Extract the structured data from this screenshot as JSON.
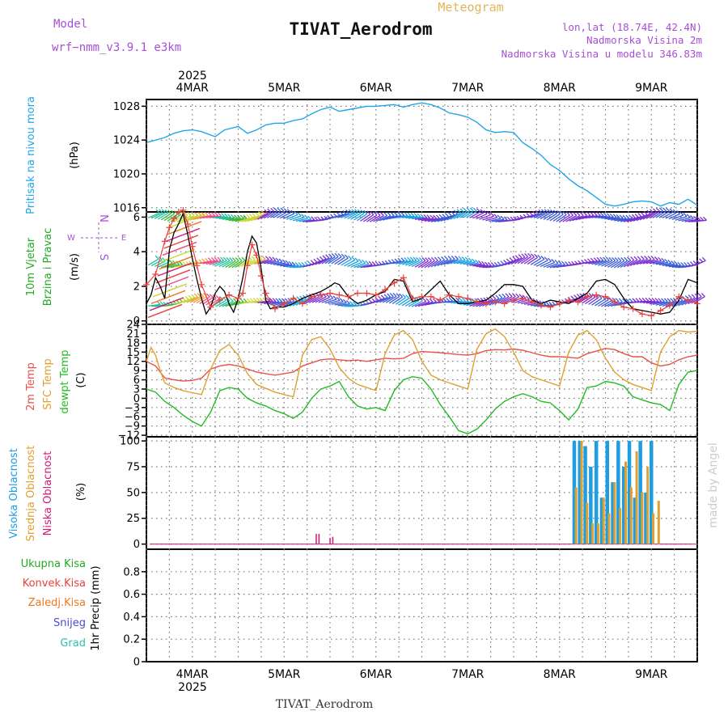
{
  "header": {
    "model_label": "Model",
    "model_name": "wrf−nmm_v3.9.1  e3km",
    "meteogram_label": "Meteogram",
    "title": "TIVAT_Aerodrom",
    "coords": "lon,lat (18.74E, 42.4N)",
    "altitude": "Nadmorska Visina 2m",
    "model_altitude": "Nadmorska Visina u modelu 346.83m",
    "watermark": "made by Angel"
  },
  "footer": {
    "station": "TIVAT_Aerodrom"
  },
  "colors": {
    "pressure": "#23a6e8",
    "wind_speed": "#000000",
    "gust": "#e8413c",
    "t2m": "#e8524a",
    "sfc": "#e0a030",
    "dewpt": "#22bb22",
    "cloud_high": "#1e9de0",
    "cloud_mid": "#e0a030",
    "cloud_low": "#d01a78",
    "precip_total": "#22aa22",
    "precip_conv": "#e8413c",
    "precip_frozen": "#f07820",
    "precip_snow": "#4a4ad6",
    "precip_graupel": "#2bc0b0"
  },
  "chart_data": [
    {
      "type": "line",
      "panel": "pressure",
      "ylabel": [
        "Pritisak na nivou mora",
        "(hPa)"
      ],
      "ylim": [
        1015.5,
        1028.8
      ],
      "yticks": [
        "1028",
        "1024",
        "1020",
        "1016"
      ],
      "x_days": [
        "4MAR",
        "5MAR",
        "6MAR",
        "7MAR",
        "8MAR",
        "9MAR"
      ],
      "year": "2025",
      "x_range_days": [
        -0.5,
        5.5
      ],
      "series": [
        {
          "name": "Sea level pressure",
          "x": [
            -0.5,
            -0.3,
            -0.2,
            -0.1,
            0.0,
            0.1,
            0.15,
            0.25,
            0.35,
            0.5,
            0.6,
            0.7,
            0.8,
            0.9,
            1.0,
            1.1,
            1.2,
            1.3,
            1.4,
            1.5,
            1.6,
            1.7,
            1.8,
            1.9,
            2.0,
            2.1,
            2.2,
            2.3,
            2.4,
            2.5,
            2.6,
            2.7,
            2.8,
            2.9,
            3.0,
            3.1,
            3.2,
            3.3,
            3.4,
            3.5,
            3.6,
            3.7,
            3.8,
            3.9,
            4.0,
            4.1,
            4.2,
            4.3,
            4.4,
            4.5,
            4.6,
            4.7,
            4.8,
            4.9,
            5.0,
            5.1,
            5.2,
            5.3,
            5.4,
            5.5
          ],
          "values": [
            1023.7,
            1024.3,
            1024.8,
            1025.1,
            1025.2,
            1025.0,
            1024.8,
            1024.4,
            1025.2,
            1025.6,
            1024.8,
            1025.2,
            1025.8,
            1026.0,
            1026.0,
            1026.3,
            1026.5,
            1027.1,
            1027.6,
            1027.9,
            1027.4,
            1027.6,
            1027.8,
            1028.0,
            1028.0,
            1028.1,
            1028.2,
            1027.9,
            1028.2,
            1028.4,
            1028.2,
            1027.8,
            1027.2,
            1027.0,
            1026.7,
            1026.1,
            1025.2,
            1024.9,
            1025.0,
            1024.9,
            1023.7,
            1023.0,
            1022.2,
            1021.1,
            1020.4,
            1019.4,
            1018.6,
            1018.0,
            1017.2,
            1016.4,
            1016.2,
            1016.4,
            1016.7,
            1016.8,
            1016.7,
            1016.2,
            1016.6,
            1016.4,
            1017.0,
            1016.3
          ]
        }
      ]
    },
    {
      "type": "line",
      "panel": "wind",
      "ylabel": [
        "10m Vjetar",
        "Brzina i Pravac",
        "(m/s)"
      ],
      "compass": [
        "N",
        "E",
        "W",
        "S"
      ],
      "ylim": [
        -0.2,
        6.3
      ],
      "yticks": [
        "6",
        "4",
        "2",
        "0"
      ],
      "series": [
        {
          "name": "Wind speed 10m",
          "x": [
            -0.5,
            -0.45,
            -0.4,
            -0.35,
            -0.3,
            -0.25,
            -0.2,
            -0.15,
            -0.1,
            -0.05,
            0.0,
            0.05,
            0.1,
            0.15,
            0.2,
            0.25,
            0.3,
            0.35,
            0.4,
            0.45,
            0.5,
            0.55,
            0.6,
            0.65,
            0.7,
            0.75,
            0.8,
            0.85,
            0.9,
            0.95,
            1.0,
            1.1,
            1.2,
            1.3,
            1.4,
            1.5,
            1.55,
            1.6,
            1.7,
            1.8,
            1.9,
            2.0,
            2.1,
            2.2,
            2.3,
            2.4,
            2.5,
            2.6,
            2.7,
            2.8,
            2.9,
            3.0,
            3.1,
            3.2,
            3.3,
            3.4,
            3.5,
            3.6,
            3.7,
            3.8,
            3.9,
            4.0,
            4.1,
            4.2,
            4.3,
            4.4,
            4.5,
            4.6,
            4.7,
            4.8,
            4.9,
            5.0,
            5.1,
            5.2,
            5.3,
            5.4,
            5.5
          ],
          "values": [
            1.0,
            1.5,
            2.5,
            2.0,
            1.3,
            4.1,
            5.1,
            5.6,
            6.2,
            5.0,
            3.6,
            2.4,
            1.3,
            0.4,
            0.8,
            1.6,
            2.0,
            1.7,
            1.0,
            0.5,
            1.3,
            2.5,
            4.0,
            4.9,
            4.5,
            3.0,
            1.2,
            0.7,
            0.8,
            0.8,
            0.8,
            1.0,
            1.3,
            1.5,
            1.7,
            2.0,
            2.2,
            2.1,
            1.4,
            1.0,
            1.2,
            1.5,
            1.7,
            2.4,
            2.3,
            1.1,
            1.3,
            1.8,
            2.3,
            1.5,
            1.0,
            1.0,
            1.1,
            1.2,
            1.6,
            2.1,
            2.1,
            2.0,
            1.2,
            1.0,
            1.2,
            1.1,
            1.0,
            1.3,
            1.6,
            2.3,
            2.4,
            2.1,
            1.3,
            0.7,
            0.6,
            0.5,
            0.4,
            0.5,
            1.2,
            2.4,
            2.2
          ]
        },
        {
          "name": "Gust",
          "x": [
            -0.5,
            -0.4,
            -0.3,
            -0.25,
            -0.2,
            -0.15,
            -0.1,
            -0.05,
            0.0,
            0.05,
            0.1,
            0.2,
            0.3,
            0.4,
            0.5,
            0.55,
            0.6,
            0.65,
            0.7,
            0.75,
            0.8,
            0.9,
            1.0,
            1.1,
            1.2,
            1.3,
            1.4,
            1.5,
            1.6,
            1.7,
            1.8,
            1.9,
            2.0,
            2.1,
            2.2,
            2.3,
            2.4,
            2.5,
            2.6,
            2.7,
            2.8,
            2.9,
            3.0,
            3.1,
            3.2,
            3.3,
            3.4,
            3.5,
            3.6,
            3.7,
            3.8,
            3.9,
            4.0,
            4.1,
            4.2,
            4.3,
            4.4,
            4.5,
            4.6,
            4.7,
            4.8,
            4.9,
            5.0,
            5.1,
            5.2,
            5.3,
            5.4,
            5.5
          ],
          "values": [
            2.1,
            2.7,
            4.6,
            5.4,
            5.9,
            6.3,
            6.4,
            5.6,
            4.3,
            3.2,
            2.1,
            0.8,
            1.2,
            1.5,
            1.3,
            1.6,
            3.2,
            4.4,
            3.8,
            2.6,
            1.6,
            0.7,
            1.0,
            1.3,
            1.0,
            1.4,
            1.5,
            1.6,
            1.5,
            1.4,
            1.6,
            1.6,
            1.5,
            1.8,
            2.2,
            2.5,
            1.3,
            1.4,
            1.4,
            1.2,
            1.5,
            1.4,
            1.3,
            1.1,
            1.0,
            1.1,
            1.0,
            1.2,
            1.3,
            1.1,
            0.9,
            0.8,
            1.0,
            1.2,
            1.1,
            1.4,
            1.5,
            1.4,
            1.1,
            0.8,
            0.7,
            0.4,
            0.3,
            0.6,
            0.9,
            1.4,
            1.2,
            1.0
          ]
        }
      ]
    },
    {
      "type": "line",
      "panel": "temperature",
      "ylabel": [
        "2m Temp",
        "SFC Temp",
        "dewpt Temp",
        "(C)"
      ],
      "ylim": [
        -12.5,
        24
      ],
      "yticks": [
        "24",
        "21",
        "18",
        "15",
        "12",
        "9",
        "6",
        "3",
        "0",
        "−3",
        "−6",
        "−9",
        "−12"
      ],
      "series": [
        {
          "name": "2m Temp",
          "x": [
            -0.5,
            -0.4,
            -0.3,
            -0.2,
            -0.1,
            0.0,
            0.1,
            0.2,
            0.3,
            0.4,
            0.5,
            0.6,
            0.7,
            0.8,
            0.9,
            1.0,
            1.1,
            1.2,
            1.3,
            1.4,
            1.5,
            1.6,
            1.7,
            1.8,
            1.9,
            2.0,
            2.1,
            2.2,
            2.3,
            2.4,
            2.5,
            2.6,
            2.7,
            2.8,
            2.9,
            3.0,
            3.1,
            3.2,
            3.3,
            3.4,
            3.5,
            3.6,
            3.7,
            3.8,
            3.9,
            4.0,
            4.1,
            4.2,
            4.3,
            4.4,
            4.5,
            4.6,
            4.7,
            4.8,
            4.9,
            5.0,
            5.1,
            5.2,
            5.3,
            5.4,
            5.5
          ],
          "values": [
            12.0,
            10.5,
            6.6,
            6.0,
            5.6,
            5.8,
            6.5,
            9.5,
            10.5,
            11.0,
            10.5,
            9.5,
            8.5,
            8.0,
            7.5,
            8.0,
            8.5,
            10.5,
            11.5,
            12.5,
            12.8,
            12.5,
            12.2,
            12.4,
            12.0,
            12.5,
            13.0,
            12.8,
            13.0,
            14.5,
            15.2,
            15.0,
            14.8,
            14.5,
            14.2,
            14.0,
            14.5,
            15.5,
            15.8,
            15.7,
            16.0,
            15.6,
            14.8,
            14.0,
            13.5,
            13.5,
            13.3,
            13.0,
            14.5,
            15.3,
            16.2,
            15.8,
            14.5,
            13.5,
            13.5,
            11.5,
            10.5,
            11.0,
            12.5,
            13.5,
            14.0
          ]
        },
        {
          "name": "SFC Temp",
          "x": [
            -0.5,
            -0.45,
            -0.4,
            -0.35,
            -0.3,
            -0.2,
            -0.1,
            0.0,
            0.1,
            0.2,
            0.3,
            0.4,
            0.5,
            0.6,
            0.7,
            0.8,
            0.9,
            1.0,
            1.1,
            1.2,
            1.3,
            1.4,
            1.5,
            1.6,
            1.7,
            1.8,
            1.9,
            2.0,
            2.1,
            2.2,
            2.3,
            2.4,
            2.5,
            2.6,
            2.7,
            2.8,
            2.9,
            3.0,
            3.1,
            3.2,
            3.3,
            3.4,
            3.5,
            3.6,
            3.7,
            3.8,
            3.9,
            4.0,
            4.1,
            4.2,
            4.3,
            4.4,
            4.5,
            4.6,
            4.7,
            4.8,
            4.9,
            5.0,
            5.1,
            5.2,
            5.3,
            5.4,
            5.5
          ],
          "values": [
            12.0,
            16.5,
            14.0,
            9.0,
            5.0,
            3.5,
            2.5,
            1.8,
            1.2,
            9.5,
            15.5,
            17.5,
            14.0,
            8.0,
            4.5,
            3.2,
            2.0,
            1.2,
            0.5,
            14.0,
            19.0,
            20.0,
            16.0,
            10.0,
            6.5,
            4.5,
            3.5,
            2.5,
            14.5,
            20.5,
            22.0,
            19.0,
            12.0,
            7.5,
            6.0,
            5.0,
            4.0,
            3.0,
            16.0,
            21.0,
            22.5,
            20.0,
            15.0,
            9.0,
            7.0,
            6.0,
            5.0,
            4.0,
            15.0,
            20.5,
            22.0,
            19.0,
            13.0,
            8.5,
            6.0,
            4.5,
            3.5,
            2.5,
            15.0,
            20.0,
            22.0,
            21.5,
            21.8
          ]
        },
        {
          "name": "dewpt Temp",
          "x": [
            -0.5,
            -0.4,
            -0.3,
            -0.2,
            -0.1,
            0.0,
            0.1,
            0.2,
            0.3,
            0.4,
            0.5,
            0.6,
            0.7,
            0.8,
            0.9,
            1.0,
            1.1,
            1.2,
            1.3,
            1.4,
            1.5,
            1.6,
            1.7,
            1.8,
            1.9,
            2.0,
            2.1,
            2.2,
            2.3,
            2.4,
            2.5,
            2.6,
            2.7,
            2.8,
            2.9,
            3.0,
            3.1,
            3.2,
            3.3,
            3.4,
            3.5,
            3.6,
            3.7,
            3.8,
            3.9,
            4.0,
            4.1,
            4.2,
            4.3,
            4.4,
            4.5,
            4.6,
            4.7,
            4.8,
            4.9,
            5.0,
            5.1,
            5.2,
            5.3,
            5.4,
            5.5
          ],
          "values": [
            3.0,
            2.0,
            -1.0,
            -3.0,
            -5.5,
            -7.5,
            -9.0,
            -4.5,
            2.5,
            3.5,
            3.0,
            0.0,
            -1.5,
            -2.5,
            -4.0,
            -5.0,
            -6.5,
            -4.5,
            0.0,
            3.0,
            4.0,
            5.5,
            0.5,
            -2.5,
            -3.5,
            -3.0,
            -4.0,
            2.5,
            6.0,
            7.0,
            6.5,
            3.0,
            -2.0,
            -6.0,
            -10.5,
            -11.5,
            -10.0,
            -7.0,
            -3.5,
            -1.0,
            0.5,
            1.5,
            0.5,
            -1.0,
            -1.5,
            -4.0,
            -7.0,
            -3.5,
            3.5,
            4.0,
            5.5,
            5.0,
            4.0,
            0.5,
            -0.5,
            -1.5,
            -2.0,
            -4.0,
            4.5,
            8.5,
            9.0
          ]
        }
      ]
    },
    {
      "type": "bar",
      "panel": "cloud",
      "ylabel": [
        "Visoka Oblacnost",
        "Srednja Oblacnost",
        "Niska Oblacnost",
        "(%)"
      ],
      "ylim": [
        -5,
        104
      ],
      "yticks": [
        "100",
        "75",
        "50",
        "25",
        "0"
      ],
      "series": [
        {
          "name": "Visoka Oblacnost",
          "x": [
            4.16,
            4.22,
            4.28,
            4.34,
            4.4,
            4.46,
            4.52,
            4.58,
            4.64,
            4.7,
            4.76,
            4.82,
            4.88,
            4.94,
            5.0
          ],
          "values": [
            100,
            100,
            95,
            75,
            100,
            45,
            100,
            60,
            100,
            75,
            100,
            45,
            100,
            50,
            100
          ]
        },
        {
          "name": "Srednja Oblacnost",
          "x": [
            4.18,
            4.24,
            4.3,
            4.36,
            4.42,
            4.48,
            4.54,
            4.6,
            4.66,
            4.72,
            4.78,
            4.84,
            4.9,
            4.96,
            5.02,
            5.08
          ],
          "values": [
            55,
            100,
            40,
            20,
            20,
            45,
            30,
            60,
            35,
            80,
            55,
            90,
            50,
            75,
            30,
            42
          ]
        },
        {
          "name": "Niska Oblacnost",
          "x": [
            1.35,
            1.38,
            1.5,
            1.53
          ],
          "values": [
            10,
            10,
            6,
            7
          ]
        }
      ]
    },
    {
      "type": "bar",
      "panel": "precip",
      "ylabel": [
        "1hr Precip (mm)"
      ],
      "legend": [
        "Ukupna Kisa",
        "Konvek.Kisa",
        "Zaledj.Kisa",
        "Snijeg",
        "Grad"
      ],
      "ylim": [
        0,
        1
      ],
      "yticks": [
        "0.8",
        "0.6",
        "0.4",
        "0.2",
        "0"
      ],
      "series": []
    }
  ]
}
